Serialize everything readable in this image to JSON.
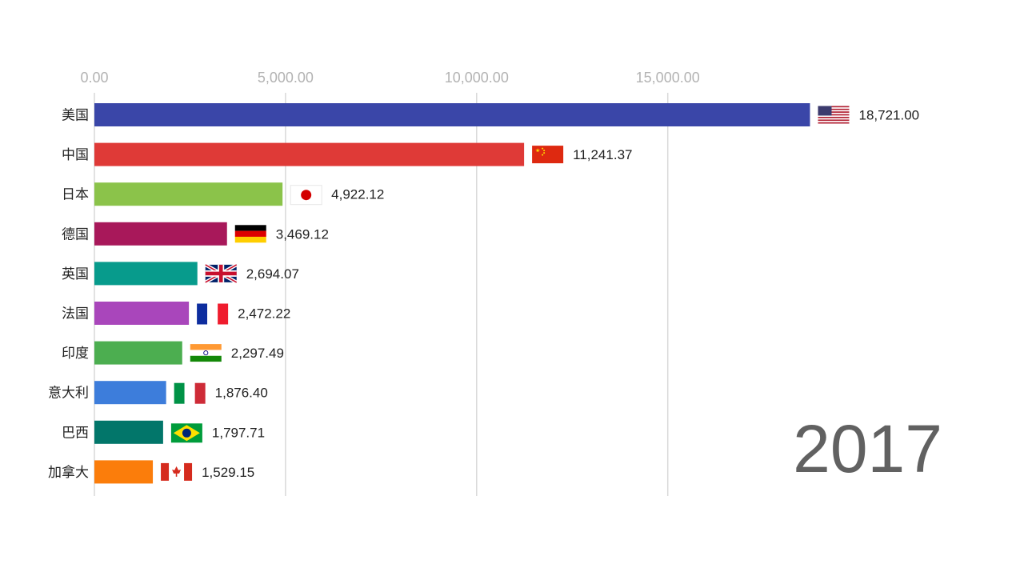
{
  "chart_data": {
    "type": "bar",
    "orientation": "horizontal",
    "title": "",
    "xlabel": "",
    "ylabel": "",
    "xlim": [
      0,
      20000
    ],
    "x_ticks": [
      0,
      5000,
      10000,
      15000
    ],
    "x_tick_labels": [
      "0.00",
      "5,000.00",
      "10,000.00",
      "15,000.00"
    ],
    "grid": true,
    "year": "2017",
    "categories": [
      "美国",
      "中国",
      "日本",
      "德国",
      "英国",
      "法国",
      "印度",
      "意大利",
      "巴西",
      "加拿大"
    ],
    "values": [
      18721.0,
      11241.37,
      4922.12,
      3469.12,
      2694.07,
      2472.22,
      2297.49,
      1876.4,
      1797.71,
      1529.15
    ],
    "value_labels": [
      "18,721.00",
      "11,241.37",
      "4,922.12",
      "3,469.12",
      "2,694.07",
      "2,472.22",
      "2,297.49",
      "1,876.40",
      "1,797.71",
      "1,529.15"
    ],
    "colors": [
      "#3a46a8",
      "#df3a37",
      "#8bc34a",
      "#a8185a",
      "#079b8c",
      "#a946bb",
      "#4cae50",
      "#3d7ddb",
      "#02766a",
      "#fb7d0b"
    ],
    "flags": [
      "us-flag",
      "cn-flag",
      "jp-flag",
      "de-flag",
      "gb-flag",
      "fr-flag",
      "in-flag",
      "it-flag",
      "br-flag",
      "ca-flag"
    ]
  }
}
